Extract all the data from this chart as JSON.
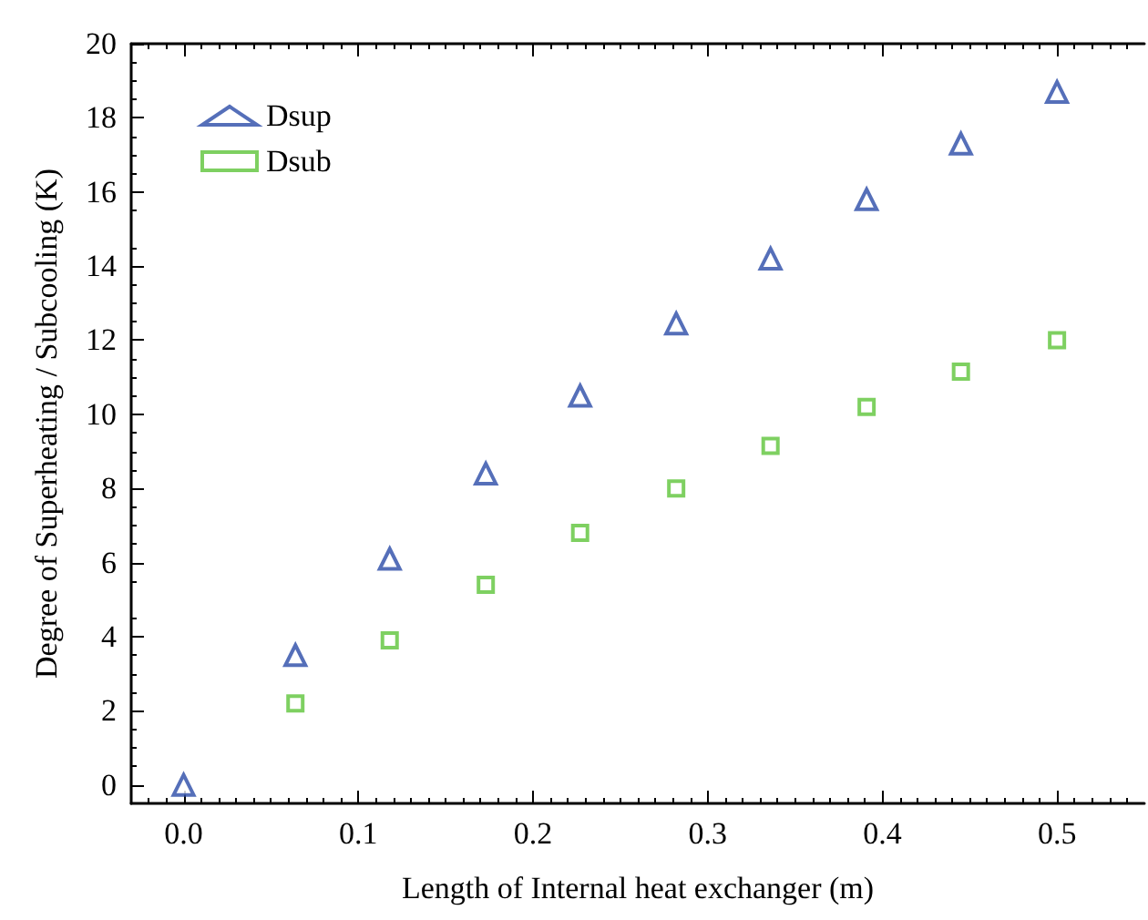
{
  "chart_data": {
    "type": "scatter",
    "xlabel": "Length of Internal heat exchanger (m)",
    "ylabel": "Degree of Superheating / Subcooling (K)",
    "x": [
      0,
      0.064,
      0.118,
      0.173,
      0.227,
      0.282,
      0.336,
      0.391,
      0.445,
      0.5
    ],
    "series": [
      {
        "name": "Dsup",
        "color": "#2b4ba8",
        "marker": "triangle",
        "values": [
          0,
          3.5,
          6.1,
          8.4,
          10.5,
          12.45,
          14.2,
          15.8,
          17.3,
          18.7
        ]
      },
      {
        "name": "Dsub",
        "color": "#5ec43a",
        "marker": "square",
        "values": [
          null,
          2.2,
          3.9,
          5.4,
          6.8,
          8.0,
          9.15,
          10.2,
          11.15,
          12.0
        ]
      }
    ],
    "xlim": [
      -0.03,
      0.55
    ],
    "xticks": [
      {
        "value": 0,
        "label": "0.0"
      },
      0.1,
      0.2,
      0.3,
      0.4,
      0.5
    ],
    "ylim": [
      -0.5,
      20
    ],
    "yticks": [
      0,
      2,
      4,
      6,
      8,
      10,
      12,
      14,
      16,
      18,
      20
    ],
    "grid": false,
    "legend": "top left"
  }
}
